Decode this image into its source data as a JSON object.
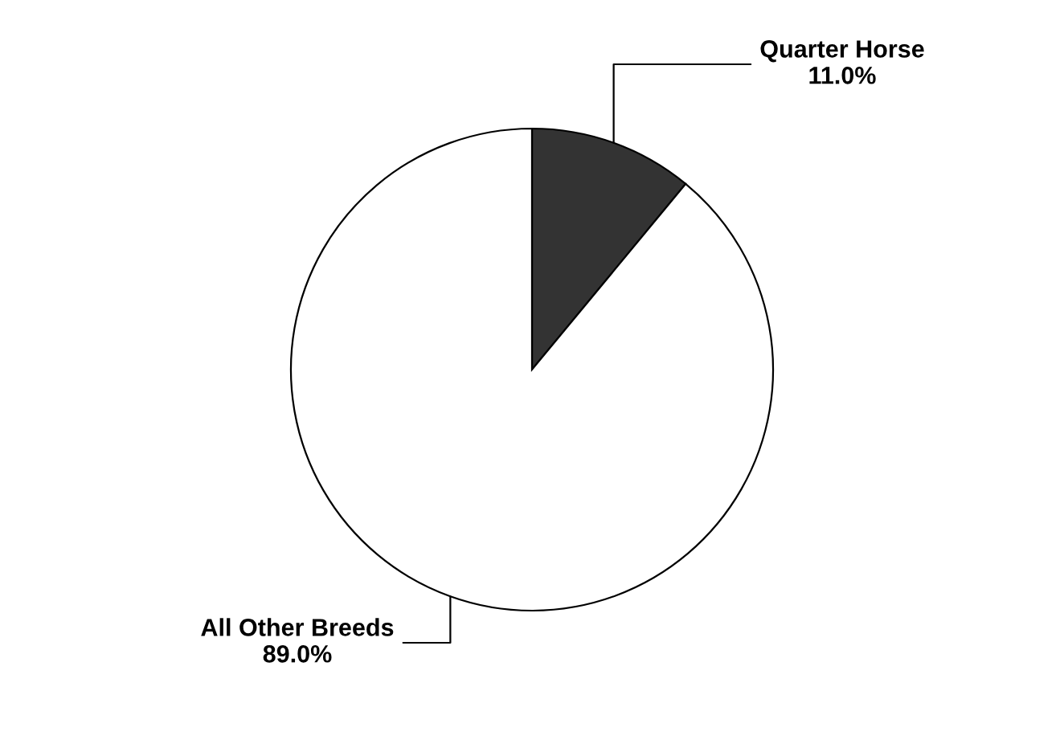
{
  "chart_data": {
    "type": "pie",
    "categories": [
      "Quarter Horse",
      "All Other Breeds"
    ],
    "values": [
      11.0,
      89.0
    ],
    "colors": [
      "#333333",
      "#ffffff"
    ],
    "value_labels": [
      "11.0%",
      "89.0%"
    ],
    "legend": false
  }
}
